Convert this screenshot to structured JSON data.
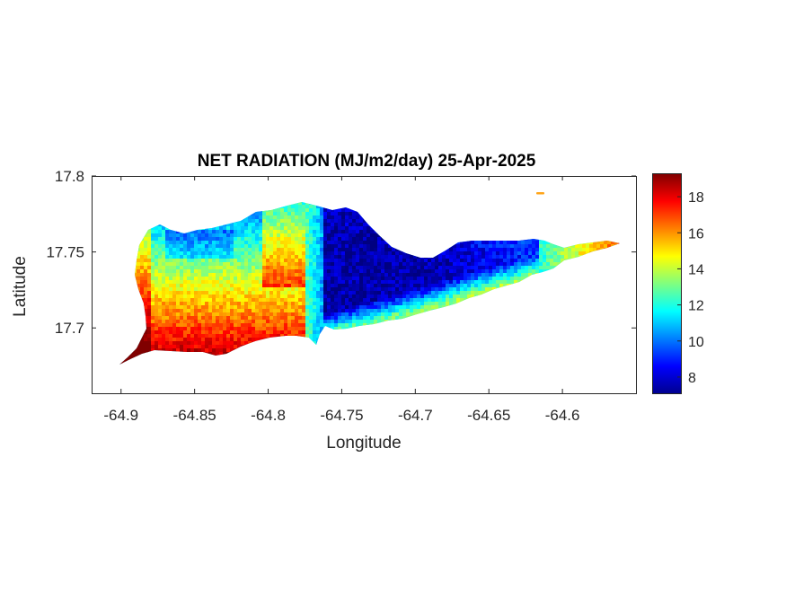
{
  "chart_data": {
    "type": "heatmap",
    "title": "NET RADIATION (MJ/m2/day) 25-Apr-2025",
    "xlabel": "Longitude",
    "ylabel": "Latitude",
    "xlim": [
      -64.92,
      -64.55
    ],
    "ylim": [
      17.657,
      17.8
    ],
    "x_ticks": [
      -64.9,
      -64.85,
      -64.8,
      -64.75,
      -64.7,
      -64.65,
      -64.6
    ],
    "x_tick_labels": [
      "-64.9",
      "-64.85",
      "-64.8",
      "-64.75",
      "-64.7",
      "-64.65",
      "-64.6"
    ],
    "y_ticks": [
      17.7,
      17.75,
      17.8
    ],
    "y_tick_labels": [
      "17.7",
      "17.75",
      "17.8"
    ],
    "colorbar": {
      "colormap": "jet",
      "range": [
        7.1,
        19.3
      ],
      "ticks": [
        8,
        10,
        12,
        14,
        16,
        18
      ],
      "tick_labels": [
        "8",
        "10",
        "12",
        "14",
        "16",
        "18"
      ],
      "location": "right"
    },
    "field_regions": [
      {
        "area": "southwest",
        "approx_value": 17.5
      },
      {
        "area": "west-central",
        "approx_value": 14
      },
      {
        "area": "northwest",
        "approx_value": 11.5
      },
      {
        "area": "central",
        "approx_value": 12.5
      },
      {
        "area": "east-central",
        "approx_value": 7.5
      },
      {
        "area": "east-south-coast",
        "approx_value": 13.5
      },
      {
        "area": "east-tip",
        "approx_value": 16
      }
    ],
    "grid": false
  },
  "colors": {
    "axes": "#262626",
    "background": "#ffffff"
  }
}
